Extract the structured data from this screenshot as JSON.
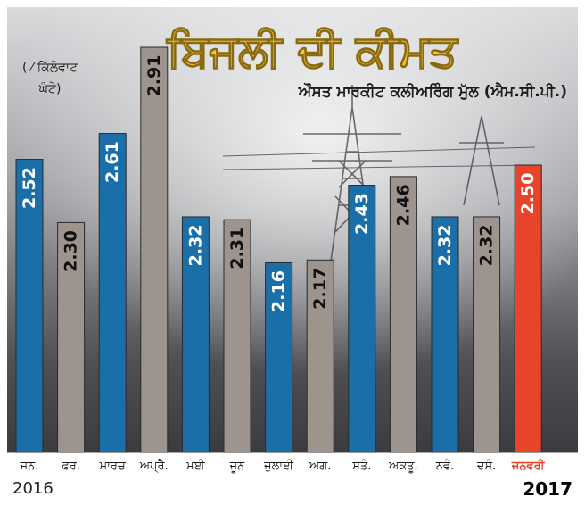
{
  "chart_data": {
    "type": "bar",
    "title": "ਬਿਜਲੀ ਦੀ ਕੀਮਤ",
    "subtitle": "ਔਸਤ ਮਾਰਕੀਟ ਕਲੀਅਰਿੰਗ ਮੁੱਲ (ਐਮ.ਸੀ.ਪੀ.)",
    "unit_label_line1": "( ⁄ ਕਿੱਲੋਵਾਟ",
    "unit_label_line2": "ਘੰਟੇ)",
    "year_start": "2016",
    "year_end": "2017",
    "categories": [
      "ਜਨ.",
      "ਫਰ.",
      "ਮਾਰਚ",
      "ਅਪ੍ਰੈ.",
      "ਮਈ",
      "ਜੂਨ",
      "ਜੁਲਾਈ",
      "ਅਗ.",
      "ਸਤੰ.",
      "ਅਕਤੂ.",
      "ਨਵੰ.",
      "ਦਸੰ.",
      "ਜਨਵਰੀ"
    ],
    "values": [
      2.52,
      2.3,
      2.61,
      2.91,
      2.32,
      2.31,
      2.16,
      2.17,
      2.43,
      2.46,
      2.32,
      2.32,
      2.5
    ],
    "value_labels": [
      "2.52",
      "2.30",
      "2.61",
      "2.91",
      "2.32",
      "2.31",
      "2.16",
      "2.17",
      "2.43",
      "2.46",
      "2.32",
      "2.32",
      "2.50"
    ],
    "bar_colors": [
      "#1a6fa8",
      "#9d948d",
      "#1a6fa8",
      "#9d948d",
      "#1a6fa8",
      "#9d948d",
      "#1a6fa8",
      "#9d948d",
      "#1a6fa8",
      "#9d948d",
      "#1a6fa8",
      "#9d948d",
      "#e8442a"
    ],
    "highlight_label_color": "#e8442a",
    "title_color": "#f2c53a",
    "ylim": [
      1.5,
      3.0
    ],
    "grid": false,
    "legend": "none"
  }
}
